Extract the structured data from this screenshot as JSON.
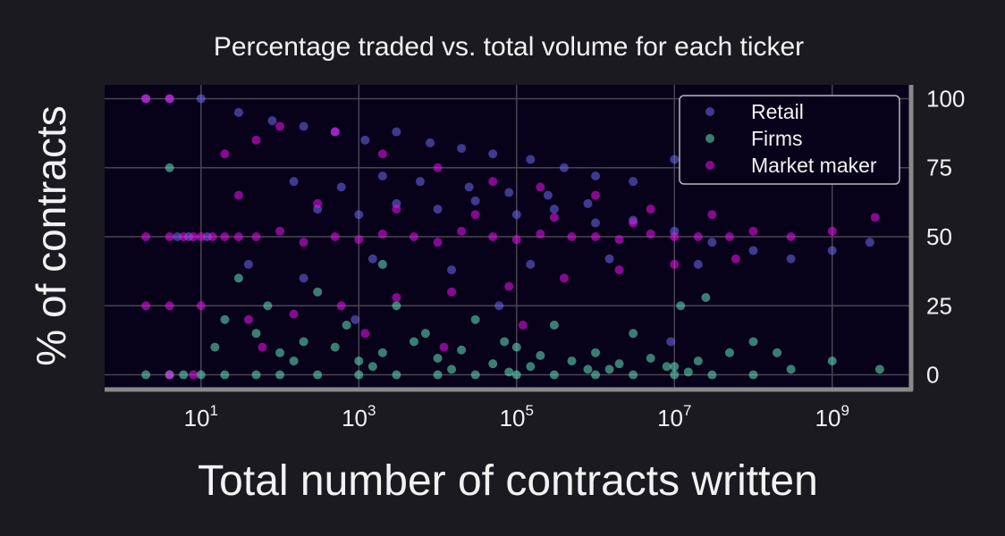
{
  "chart_data": {
    "type": "scatter",
    "title": "Percentage traded vs. total volume for each ticker",
    "xlabel": "Total number of contracts written",
    "ylabel": "% of contracts",
    "x_scale": "log",
    "xlim": [
      0.6,
      10000000000
    ],
    "ylim": [
      -5,
      105
    ],
    "x_ticks": [
      {
        "value": 10,
        "base": "10",
        "exp": "1"
      },
      {
        "value": 1000,
        "base": "10",
        "exp": "3"
      },
      {
        "value": 100000,
        "base": "10",
        "exp": "5"
      },
      {
        "value": 10000000,
        "base": "10",
        "exp": "7"
      },
      {
        "value": 1000000000,
        "base": "10",
        "exp": "9"
      }
    ],
    "y_ticks": [
      "0",
      "25",
      "50",
      "75",
      "100"
    ],
    "y_axis_side": "right",
    "grid": true,
    "legend_position": "top-right",
    "series": [
      {
        "name": "Retail",
        "color": "#6e6af0",
        "points": [
          [
            2,
            100
          ],
          [
            4,
            100
          ],
          [
            10,
            100
          ],
          [
            30,
            95
          ],
          [
            80,
            92
          ],
          [
            200,
            90
          ],
          [
            500,
            88
          ],
          [
            1200,
            85
          ],
          [
            3000,
            88
          ],
          [
            8000,
            84
          ],
          [
            20000,
            82
          ],
          [
            50000,
            80
          ],
          [
            150000,
            78
          ],
          [
            400000,
            75
          ],
          [
            1000000,
            72
          ],
          [
            3000000,
            70
          ],
          [
            10000000,
            78
          ],
          [
            300,
            60
          ],
          [
            1000,
            58
          ],
          [
            3000,
            62
          ],
          [
            10000,
            60
          ],
          [
            30000,
            63
          ],
          [
            100000,
            58
          ],
          [
            300000,
            60
          ],
          [
            1000000,
            55
          ],
          [
            3000000,
            56
          ],
          [
            10000000,
            52
          ],
          [
            30000000,
            48
          ],
          [
            100000000,
            45
          ],
          [
            300000000,
            42
          ],
          [
            1000000000,
            45
          ],
          [
            3000000000,
            48
          ],
          [
            150,
            70
          ],
          [
            600,
            68
          ],
          [
            2000,
            72
          ],
          [
            6000,
            70
          ],
          [
            25000,
            68
          ],
          [
            80000,
            66
          ],
          [
            250000,
            65
          ],
          [
            800000,
            62
          ],
          [
            40,
            40
          ],
          [
            200,
            35
          ],
          [
            1500,
            42
          ],
          [
            15000,
            38
          ],
          [
            150000,
            40
          ],
          [
            1500000,
            42
          ],
          [
            20000000,
            40
          ],
          [
            5,
            50
          ],
          [
            7,
            50
          ],
          [
            12,
            50
          ],
          [
            60000,
            25
          ],
          [
            900,
            20
          ],
          [
            9000000,
            12
          ]
        ]
      },
      {
        "name": "Firms",
        "color": "#62e6c0",
        "points": [
          [
            2,
            0
          ],
          [
            4,
            0
          ],
          [
            6,
            0
          ],
          [
            10,
            0
          ],
          [
            20,
            0
          ],
          [
            50,
            0
          ],
          [
            100,
            0
          ],
          [
            300,
            0
          ],
          [
            1000,
            0
          ],
          [
            3000,
            0
          ],
          [
            10000,
            0
          ],
          [
            30000,
            0
          ],
          [
            100000,
            0
          ],
          [
            300000,
            0
          ],
          [
            1000000,
            0
          ],
          [
            3000000,
            0
          ],
          [
            10000000,
            0
          ],
          [
            30000000,
            0
          ],
          [
            100000000,
            0
          ],
          [
            4,
            75
          ],
          [
            20,
            20
          ],
          [
            50,
            15
          ],
          [
            100,
            8
          ],
          [
            200,
            12
          ],
          [
            500,
            10
          ],
          [
            1000,
            5
          ],
          [
            2000,
            8
          ],
          [
            5000,
            12
          ],
          [
            10000,
            6
          ],
          [
            20000,
            9
          ],
          [
            50000,
            4
          ],
          [
            100000,
            10
          ],
          [
            200000,
            7
          ],
          [
            500000,
            5
          ],
          [
            1000000,
            8
          ],
          [
            2000000,
            4
          ],
          [
            5000000,
            6
          ],
          [
            10000000,
            3
          ],
          [
            20000000,
            5
          ],
          [
            50000000,
            8
          ],
          [
            100000000,
            12
          ],
          [
            300000000,
            2
          ],
          [
            1000000000,
            5
          ],
          [
            4000000000,
            2
          ],
          [
            30,
            35
          ],
          [
            300,
            30
          ],
          [
            3000,
            25
          ],
          [
            30000,
            20
          ],
          [
            300000,
            18
          ],
          [
            3000000,
            15
          ],
          [
            15,
            10
          ],
          [
            150,
            5
          ],
          [
            1500,
            3
          ],
          [
            15000,
            2
          ],
          [
            150000,
            3
          ],
          [
            1500000,
            2
          ],
          [
            15000000,
            1
          ],
          [
            80000,
            1
          ],
          [
            800000,
            2
          ],
          [
            8000000,
            3
          ],
          [
            70,
            25
          ],
          [
            700,
            18
          ],
          [
            7000,
            15
          ],
          [
            70000,
            12
          ],
          [
            12000000,
            25
          ],
          [
            25000000,
            28
          ],
          [
            200000000,
            8
          ],
          [
            2000,
            40
          ]
        ]
      },
      {
        "name": "Market maker",
        "color": "#ef10f0",
        "points": [
          [
            2,
            100
          ],
          [
            4,
            100
          ],
          [
            2,
            50
          ],
          [
            4,
            50
          ],
          [
            6,
            50
          ],
          [
            8,
            50
          ],
          [
            10,
            50
          ],
          [
            14,
            50
          ],
          [
            20,
            50
          ],
          [
            30,
            50
          ],
          [
            50,
            50
          ],
          [
            100,
            52
          ],
          [
            200,
            48
          ],
          [
            500,
            50
          ],
          [
            1000,
            49
          ],
          [
            2000,
            51
          ],
          [
            5000,
            50
          ],
          [
            10000,
            48
          ],
          [
            20000,
            52
          ],
          [
            50000,
            50
          ],
          [
            100000,
            49
          ],
          [
            200000,
            51
          ],
          [
            500000,
            50
          ],
          [
            1000000,
            50
          ],
          [
            2000000,
            49
          ],
          [
            5000000,
            51
          ],
          [
            10000000,
            50
          ],
          [
            20000000,
            50
          ],
          [
            50000000,
            50
          ],
          [
            100000000,
            52
          ],
          [
            300000000,
            50
          ],
          [
            1000000000,
            52
          ],
          [
            2,
            25
          ],
          [
            4,
            25
          ],
          [
            4,
            0
          ],
          [
            8,
            0
          ],
          [
            10,
            25
          ],
          [
            20,
            80
          ],
          [
            50,
            85
          ],
          [
            100,
            90
          ],
          [
            500,
            88
          ],
          [
            2000,
            80
          ],
          [
            10000,
            75
          ],
          [
            50000,
            70
          ],
          [
            200000,
            68
          ],
          [
            1000000,
            65
          ],
          [
            5000000,
            60
          ],
          [
            30000000,
            58
          ],
          [
            40,
            20
          ],
          [
            150,
            22
          ],
          [
            600,
            25
          ],
          [
            3000,
            28
          ],
          [
            15000,
            30
          ],
          [
            80000,
            32
          ],
          [
            400000,
            35
          ],
          [
            2000000,
            38
          ],
          [
            10000000,
            40
          ],
          [
            60000000,
            42
          ],
          [
            30,
            65
          ],
          [
            300,
            62
          ],
          [
            3000,
            60
          ],
          [
            30000,
            58
          ],
          [
            300000,
            57
          ],
          [
            3000000,
            55
          ],
          [
            3500000000,
            57
          ],
          [
            1200,
            15
          ],
          [
            12000,
            10
          ],
          [
            120000,
            18
          ],
          [
            60,
            10
          ]
        ]
      }
    ]
  }
}
